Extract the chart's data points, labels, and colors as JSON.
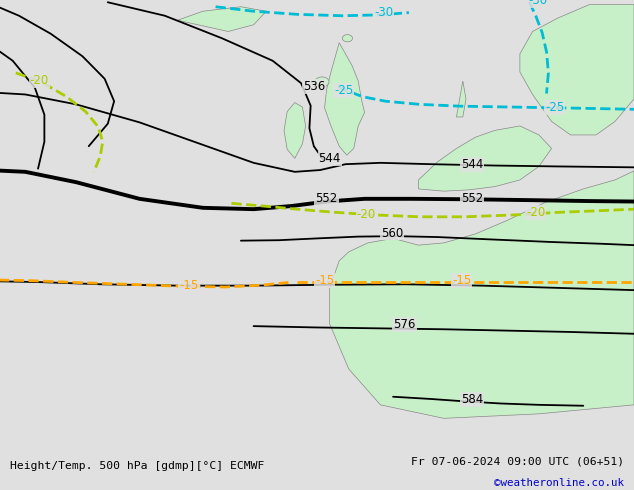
{
  "title_left": "Height/Temp. 500 hPa [gdmp][°C] ECMWF",
  "title_right": "Fr 07-06-2024 09:00 UTC (06+51)",
  "credit": "©weatheronline.co.uk",
  "background_color": "#e0e0e0",
  "land_color": "#c8f0c8",
  "sea_color": "#e0e0e0",
  "height_contour_color": "#000000",
  "temp_contour_neg30_color": "#00bcd4",
  "temp_contour_neg25_color": "#00bcd4",
  "temp_contour_neg20_color": "#aacc00",
  "temp_contour_neg15_color": "#ffa500",
  "fig_width": 6.34,
  "fig_height": 4.9,
  "dpi": 100,
  "bottom_bar_color": "#c8c8c8",
  "bottom_bar_height": 0.082,
  "text_color": "#000000",
  "credit_color": "#0000cc"
}
